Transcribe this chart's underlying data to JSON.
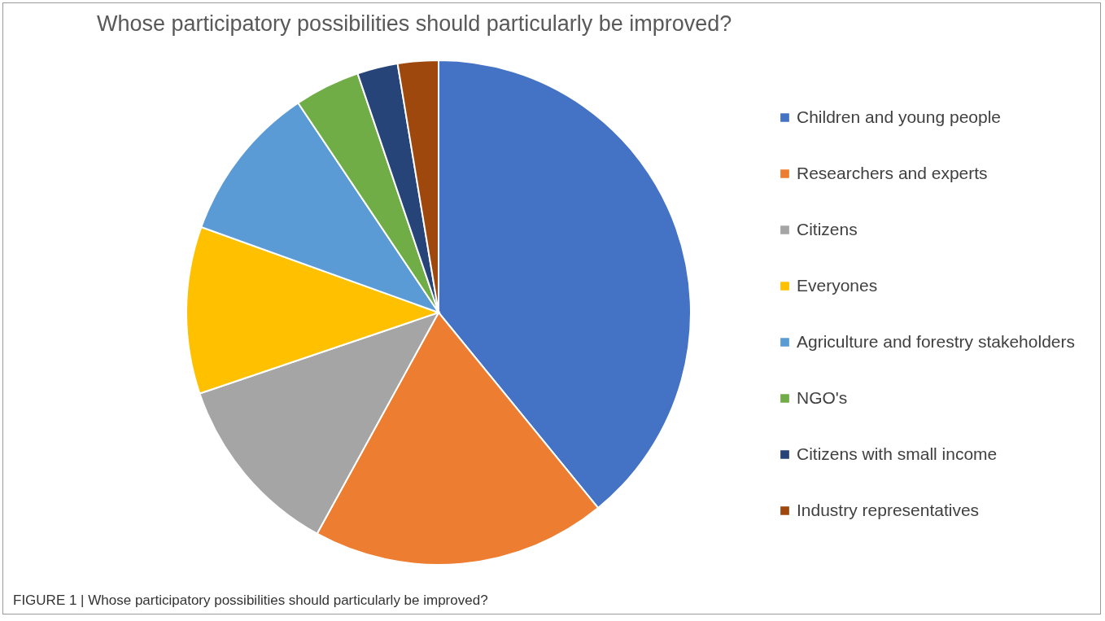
{
  "chart_data": {
    "type": "pie",
    "title": "Whose participatory possibilities should particularly be improved?",
    "categories": [
      "Children and young people",
      "Researchers and experts",
      "Citizens",
      "Everyones",
      "Agriculture and forestry stakeholders",
      "NGO's",
      "Citizens with small income",
      "Industry representatives"
    ],
    "values": [
      39.1,
      18.9,
      11.8,
      10.7,
      10.1,
      4.2,
      2.6,
      2.6
    ],
    "colors": [
      "#4472c4",
      "#ed7d31",
      "#a5a5a5",
      "#ffc000",
      "#5b9bd5",
      "#70ad47",
      "#264478",
      "#9e480e"
    ],
    "legend": "right",
    "annotations": [
      "FIGURE 1 | Whose participatory possibilities should particularly be improved?"
    ]
  }
}
